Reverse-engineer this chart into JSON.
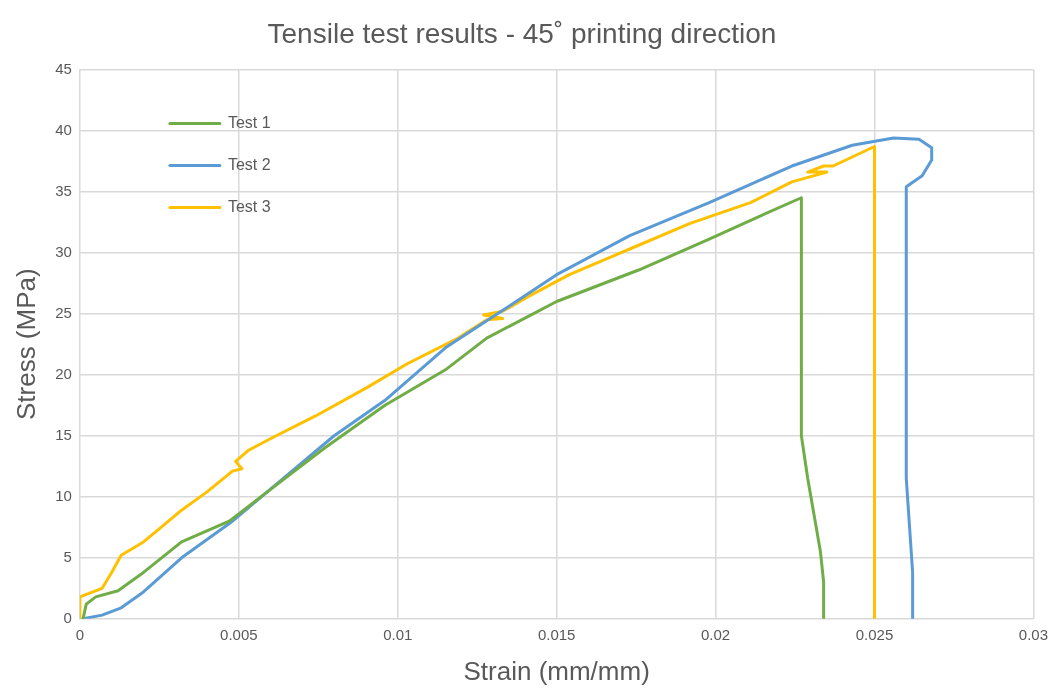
{
  "chart_data": {
    "type": "line",
    "title": "Tensile test results - 45˚ printing direction",
    "xlabel": "Strain (mm/mm)",
    "ylabel": "Stress (MPa)",
    "xlim": [
      0,
      0.03
    ],
    "xticks": [
      0,
      0.005,
      0.01,
      0.015,
      0.02,
      0.025,
      0.03
    ],
    "ylim": [
      0,
      45
    ],
    "yticks": [
      0,
      5,
      10,
      15,
      20,
      25,
      30,
      35,
      40,
      45
    ],
    "grid": true,
    "legend": "top left",
    "marker": "none",
    "line_style": "solid",
    "series": [
      {
        "name": "Test 1",
        "color": "#70ad47",
        "x": [
          0.0001,
          0.0002,
          0.0005,
          0.0012,
          0.002,
          0.0032,
          0.0047,
          0.006,
          0.0077,
          0.0096,
          0.0115,
          0.0128,
          0.015,
          0.0176,
          0.0198,
          0.0214,
          0.0227,
          0.0227,
          0.0229,
          0.0233,
          0.0234,
          0.0234
        ],
        "values": [
          0,
          1.2,
          1.8,
          2.3,
          3.8,
          6.3,
          8,
          10.6,
          14,
          17.5,
          20.4,
          23,
          26,
          28.6,
          31.1,
          33,
          34.5,
          15,
          11.5,
          5.5,
          3,
          0
        ]
      },
      {
        "name": "Test 2",
        "color": "#5b9bd5",
        "x": [
          0.0001,
          0.0007,
          0.0013,
          0.002,
          0.0032,
          0.0048,
          0.0064,
          0.008,
          0.0096,
          0.0115,
          0.0135,
          0.015,
          0.0173,
          0.0198,
          0.0224,
          0.0243,
          0.0256,
          0.0264,
          0.0268,
          0.0268,
          0.0265,
          0.026,
          0.026,
          0.0262,
          0.0262
        ],
        "values": [
          0,
          0.3,
          0.9,
          2.2,
          5,
          8,
          11.5,
          15,
          17.9,
          22.2,
          25.6,
          28.2,
          31.4,
          34.1,
          37.1,
          38.8,
          39.4,
          39.3,
          38.6,
          37.6,
          36.3,
          35.4,
          11.5,
          3.8,
          0
        ]
      },
      {
        "name": "Test 3",
        "color": "#ffc000",
        "x": [
          0,
          0,
          0.0007,
          0.001,
          0.0013,
          0.002,
          0.0026,
          0.0032,
          0.004,
          0.0048,
          0.0051,
          0.0049,
          0.0053,
          0.0061,
          0.0074,
          0.009,
          0.0103,
          0.0119,
          0.0128,
          0.0133,
          0.0127,
          0.0133,
          0.0141,
          0.0154,
          0.0173,
          0.0192,
          0.0211,
          0.0224,
          0.0235,
          0.0229,
          0.0234,
          0.0237,
          0.025,
          0.025
        ],
        "values": [
          0,
          1.8,
          2.5,
          3.8,
          5.2,
          6.3,
          7.6,
          8.9,
          10.4,
          12.1,
          12.3,
          12.9,
          13.8,
          14.9,
          16.6,
          18.9,
          20.9,
          23,
          24.5,
          24.6,
          24.9,
          25.2,
          26.4,
          28.2,
          30.3,
          32.4,
          34.1,
          35.8,
          36.6,
          36.6,
          37.1,
          37.1,
          38.7,
          0
        ]
      }
    ]
  }
}
